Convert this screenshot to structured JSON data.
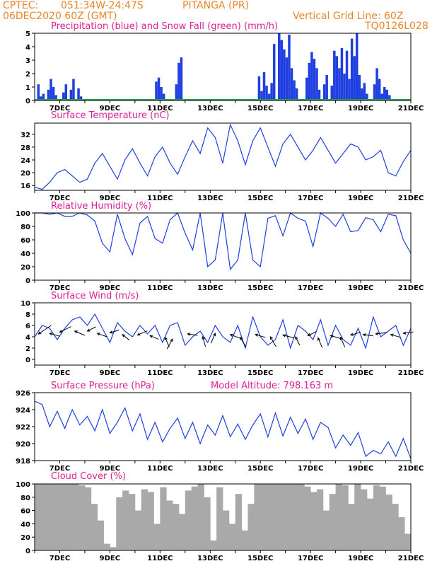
{
  "header": {
    "org": "CPTEC:",
    "coords": "051:34W-24:47S",
    "location": "PITANGA (PR)",
    "run": "06DEC2020 60Z (GMT)",
    "vgrid": "Vertical Grid Line: 60Z",
    "model": "TQ0126L028"
  },
  "colors": {
    "header": "#e8862a",
    "title": "#e01e96",
    "line": "#1f3fe0",
    "cloud": "#a9a9a9",
    "snow": "#1fa54a"
  },
  "x_ticks": [
    "7DEC",
    "9DEC",
    "11DEC",
    "13DEC",
    "15DEC",
    "17DEC",
    "19DEC",
    "21DEC"
  ],
  "chart_data": [
    {
      "type": "bar",
      "title": "Precipitation (blue) and Snow Fall (green) (mm/h)",
      "ylim": [
        0,
        5
      ],
      "yticks": [
        0,
        1,
        2,
        3,
        4,
        5
      ],
      "xlim": [
        6.0,
        21.0
      ],
      "series": [
        {
          "name": "Precipitation",
          "x": [
            6.1,
            6.2,
            6.3,
            6.5,
            6.6,
            6.7,
            6.8,
            7.1,
            7.2,
            7.4,
            7.5,
            7.7,
            7.8,
            10.8,
            10.9,
            11.0,
            11.1,
            11.6,
            11.7,
            11.8,
            14.9,
            15.0,
            15.1,
            15.2,
            15.3,
            15.4,
            15.5,
            15.7,
            15.8,
            15.9,
            16.0,
            16.1,
            16.2,
            16.3,
            16.4,
            16.8,
            16.9,
            17.0,
            17.1,
            17.2,
            17.3,
            17.5,
            17.6,
            17.8,
            17.9,
            18.0,
            18.1,
            18.2,
            18.3,
            18.4,
            18.5,
            18.6,
            18.7,
            18.8,
            18.9,
            19.0,
            19.1,
            19.2,
            19.5,
            19.6,
            19.7,
            19.8,
            19.9,
            20.0,
            20.1
          ],
          "values": [
            1.2,
            0.3,
            0.5,
            0.8,
            1.6,
            1.0,
            0.4,
            0.6,
            1.2,
            0.8,
            1.6,
            0.9,
            0.3,
            1.4,
            1.7,
            1.0,
            0.5,
            1.2,
            2.8,
            3.2,
            1.8,
            0.7,
            2.1,
            1.1,
            0.5,
            1.3,
            4.2,
            5.0,
            4.5,
            3.8,
            3.2,
            4.9,
            2.4,
            1.5,
            0.9,
            1.7,
            2.8,
            3.6,
            3.1,
            2.4,
            0.8,
            1.2,
            1.9,
            1.1,
            3.7,
            3.3,
            2.4,
            3.9,
            2.0,
            3.7,
            1.6,
            4.6,
            3.3,
            5.0,
            1.9,
            0.9,
            1.3,
            0.5,
            1.2,
            2.4,
            1.6,
            0.5,
            1.0,
            0.8,
            0.4
          ]
        },
        {
          "name": "Snow Fall",
          "x": [],
          "values": []
        }
      ]
    },
    {
      "type": "line",
      "title": "Surface Temperature (nC)",
      "ylim": [
        14.5,
        35.5
      ],
      "yticks": [
        16,
        20,
        24,
        28,
        32
      ],
      "x": [
        6.0,
        6.3,
        6.6,
        6.9,
        7.2,
        7.5,
        7.8,
        8.1,
        8.4,
        8.7,
        9.0,
        9.3,
        9.6,
        9.9,
        10.2,
        10.5,
        10.8,
        11.1,
        11.4,
        11.7,
        12.0,
        12.3,
        12.6,
        12.9,
        13.2,
        13.5,
        13.8,
        14.1,
        14.4,
        14.7,
        15.0,
        15.3,
        15.6,
        15.9,
        16.2,
        16.5,
        16.8,
        17.1,
        17.4,
        17.7,
        18.0,
        18.3,
        18.6,
        18.9,
        19.2,
        19.5,
        19.8,
        20.1,
        20.4,
        20.7,
        21.0
      ],
      "values": [
        15.5,
        14.8,
        17,
        20,
        21,
        19,
        17,
        18,
        23,
        26,
        22,
        18,
        24,
        27.5,
        23,
        19,
        25,
        28,
        23,
        19.5,
        25,
        30,
        26,
        34,
        31,
        23,
        35,
        30,
        22.5,
        30,
        34,
        28,
        22,
        29,
        32,
        28,
        24,
        27,
        31,
        27,
        23,
        26,
        29,
        28,
        24,
        25,
        27,
        20,
        19,
        23.5,
        27
      ]
    },
    {
      "type": "line",
      "title": "Relative Humidity (%)",
      "ylim": [
        0,
        100
      ],
      "yticks": [
        0,
        20,
        40,
        60,
        80,
        100
      ],
      "x": [
        6.0,
        6.3,
        6.6,
        6.9,
        7.2,
        7.5,
        7.8,
        8.1,
        8.4,
        8.7,
        9.0,
        9.3,
        9.6,
        9.9,
        10.2,
        10.5,
        10.8,
        11.1,
        11.4,
        11.7,
        12.0,
        12.3,
        12.6,
        12.9,
        13.2,
        13.5,
        13.8,
        14.1,
        14.4,
        14.7,
        15.0,
        15.3,
        15.6,
        15.9,
        16.2,
        16.5,
        16.8,
        17.1,
        17.4,
        17.7,
        18.0,
        18.3,
        18.6,
        18.9,
        19.2,
        19.5,
        19.8,
        20.1,
        20.4,
        20.7,
        21.0
      ],
      "values": [
        100,
        100,
        98,
        100,
        95,
        95,
        100,
        97,
        88,
        55,
        42,
        98,
        62,
        38,
        85,
        95,
        62,
        55,
        90,
        100,
        70,
        45,
        100,
        20,
        30,
        100,
        16,
        30,
        100,
        30,
        20,
        92,
        96,
        66,
        100,
        92,
        88,
        50,
        100,
        92,
        80,
        98,
        72,
        74,
        93,
        90,
        72,
        98,
        96,
        60,
        40
      ]
    },
    {
      "type": "line",
      "title": "Surface Wind (m/s)",
      "ylim": [
        -1,
        10
      ],
      "yticks": [
        0,
        2,
        4,
        6,
        8,
        10
      ],
      "x": [
        6.0,
        6.3,
        6.6,
        6.9,
        7.2,
        7.5,
        7.8,
        8.1,
        8.4,
        8.7,
        9.0,
        9.3,
        9.6,
        9.9,
        10.2,
        10.5,
        10.8,
        11.1,
        11.4,
        11.7,
        12.0,
        12.3,
        12.6,
        12.9,
        13.2,
        13.5,
        13.8,
        14.1,
        14.4,
        14.7,
        15.0,
        15.3,
        15.6,
        15.9,
        16.2,
        16.5,
        16.8,
        17.1,
        17.4,
        17.7,
        18.0,
        18.3,
        18.6,
        18.9,
        19.2,
        19.5,
        19.8,
        20.1,
        20.4,
        20.7,
        21.0
      ],
      "values": [
        4,
        6,
        5.5,
        3.5,
        5.5,
        7,
        7.5,
        6,
        8,
        5.5,
        3,
        6.5,
        5,
        4,
        6,
        4.5,
        6,
        3,
        6,
        6.5,
        2.5,
        4,
        5,
        3,
        6,
        4,
        3,
        6,
        2,
        7.5,
        4,
        2.5,
        3.5,
        7,
        2,
        6,
        5,
        3.5,
        7,
        2.5,
        6,
        3.5,
        2.5,
        5.5,
        2,
        7.5,
        4,
        5,
        6,
        2.5,
        5.5
      ],
      "arrows": [
        {
          "x": 6.15,
          "y": 4.5,
          "dx": 18,
          "dy": -12
        },
        {
          "x": 6.6,
          "y": 4.6,
          "dx": 14,
          "dy": 4
        },
        {
          "x": 7.0,
          "y": 4.8,
          "dx": 16,
          "dy": -8
        },
        {
          "x": 7.6,
          "y": 5.0,
          "dx": 14,
          "dy": 6
        },
        {
          "x": 8.1,
          "y": 5.0,
          "dx": 12,
          "dy": -6
        },
        {
          "x": 8.5,
          "y": 4.6,
          "dx": 14,
          "dy": 5
        },
        {
          "x": 9.0,
          "y": 4.7,
          "dx": 13,
          "dy": -4
        },
        {
          "x": 9.5,
          "y": 4.4,
          "dx": 10,
          "dy": 8
        },
        {
          "x": 10.1,
          "y": 4.3,
          "dx": 14,
          "dy": -6
        },
        {
          "x": 10.6,
          "y": 4.2,
          "dx": 12,
          "dy": 5
        },
        {
          "x": 11.2,
          "y": 3.9,
          "dx": 6,
          "dy": 14
        },
        {
          "x": 11.5,
          "y": 3.6,
          "dx": -8,
          "dy": 14
        },
        {
          "x": 12.1,
          "y": 4.5,
          "dx": 14,
          "dy": 2
        },
        {
          "x": 12.7,
          "y": 4.0,
          "dx": 4,
          "dy": 14
        },
        {
          "x": 13.2,
          "y": 4.6,
          "dx": -6,
          "dy": 14
        },
        {
          "x": 13.8,
          "y": 4.4,
          "dx": 16,
          "dy": 6
        },
        {
          "x": 14.2,
          "y": 3.9,
          "dx": 8,
          "dy": 14
        },
        {
          "x": 14.8,
          "y": 4.4,
          "dx": 14,
          "dy": 4
        },
        {
          "x": 15.4,
          "y": 4.0,
          "dx": 8,
          "dy": 14
        },
        {
          "x": 15.9,
          "y": 4.3,
          "dx": 16,
          "dy": 4
        },
        {
          "x": 16.4,
          "y": 4.0,
          "dx": 6,
          "dy": 12
        },
        {
          "x": 16.9,
          "y": 4.2,
          "dx": 12,
          "dy": -6
        },
        {
          "x": 17.3,
          "y": 3.8,
          "dx": 6,
          "dy": 14
        },
        {
          "x": 17.8,
          "y": 4.2,
          "dx": 14,
          "dy": 4
        },
        {
          "x": 18.2,
          "y": 3.9,
          "dx": 6,
          "dy": 14
        },
        {
          "x": 18.6,
          "y": 4.3,
          "dx": 14,
          "dy": -4
        },
        {
          "x": 19.1,
          "y": 4.4,
          "dx": 14,
          "dy": 2
        },
        {
          "x": 19.6,
          "y": 4.5,
          "dx": 16,
          "dy": -2
        },
        {
          "x": 20.2,
          "y": 4.4,
          "dx": 14,
          "dy": 4
        },
        {
          "x": 20.7,
          "y": 4.6,
          "dx": 14,
          "dy": -2
        }
      ]
    },
    {
      "type": "line",
      "title": "Surface Pressure (hPa)",
      "annotation": "Model Altitude: 798.163 m",
      "ylim": [
        918,
        926
      ],
      "yticks": [
        918,
        920,
        922,
        924,
        926
      ],
      "x": [
        6.0,
        6.3,
        6.6,
        6.9,
        7.2,
        7.5,
        7.8,
        8.1,
        8.4,
        8.7,
        9.0,
        9.3,
        9.6,
        9.9,
        10.2,
        10.5,
        10.8,
        11.1,
        11.4,
        11.7,
        12.0,
        12.3,
        12.6,
        12.9,
        13.2,
        13.5,
        13.8,
        14.1,
        14.4,
        14.7,
        15.0,
        15.3,
        15.6,
        15.9,
        16.2,
        16.5,
        16.8,
        17.1,
        17.4,
        17.7,
        18.0,
        18.3,
        18.6,
        18.9,
        19.2,
        19.5,
        19.8,
        20.1,
        20.4,
        20.7,
        21.0
      ],
      "values": [
        925,
        924.6,
        922,
        923.8,
        921.8,
        924,
        922.2,
        923.2,
        921.5,
        924,
        921.2,
        922.5,
        924.2,
        921.5,
        923.5,
        920.5,
        922.5,
        920.2,
        921.8,
        923,
        920.6,
        922.5,
        920,
        922.2,
        921,
        923.3,
        920.8,
        922.3,
        920.5,
        922.2,
        923.5,
        920.8,
        923.6,
        920.9,
        923.1,
        921.2,
        922.9,
        920.5,
        922.5,
        921.9,
        919.5,
        921,
        919.8,
        921.3,
        918.5,
        919.2,
        918.8,
        920.2,
        918.5,
        920.6,
        918.2
      ]
    },
    {
      "type": "bar",
      "title": "Cloud Cover (%)",
      "ylim": [
        0,
        100
      ],
      "yticks": [
        0,
        20,
        40,
        60,
        80,
        100
      ],
      "x": [
        6.0,
        6.25,
        6.5,
        6.75,
        7.0,
        7.25,
        7.5,
        7.75,
        8.0,
        8.25,
        8.5,
        8.75,
        9.0,
        9.25,
        9.5,
        9.75,
        10.0,
        10.25,
        10.5,
        10.75,
        11.0,
        11.25,
        11.5,
        11.75,
        12.0,
        12.25,
        12.5,
        12.75,
        13.0,
        13.25,
        13.5,
        13.75,
        14.0,
        14.25,
        14.5,
        14.75,
        15.0,
        15.25,
        15.5,
        15.75,
        16.0,
        16.25,
        16.5,
        16.75,
        17.0,
        17.25,
        17.5,
        17.75,
        18.0,
        18.25,
        18.5,
        18.75,
        19.0,
        19.25,
        19.5,
        19.75,
        20.0,
        20.25,
        20.5,
        20.75
      ],
      "values": [
        100,
        100,
        100,
        100,
        100,
        100,
        100,
        98,
        95,
        70,
        45,
        10,
        5,
        80,
        90,
        85,
        60,
        92,
        88,
        40,
        95,
        75,
        70,
        55,
        90,
        96,
        100,
        80,
        15,
        95,
        60,
        40,
        85,
        30,
        70,
        100,
        100,
        100,
        100,
        100,
        100,
        100,
        100,
        96,
        88,
        92,
        60,
        85,
        100,
        98,
        70,
        100,
        92,
        78,
        98,
        96,
        84,
        70,
        50,
        25
      ]
    }
  ]
}
